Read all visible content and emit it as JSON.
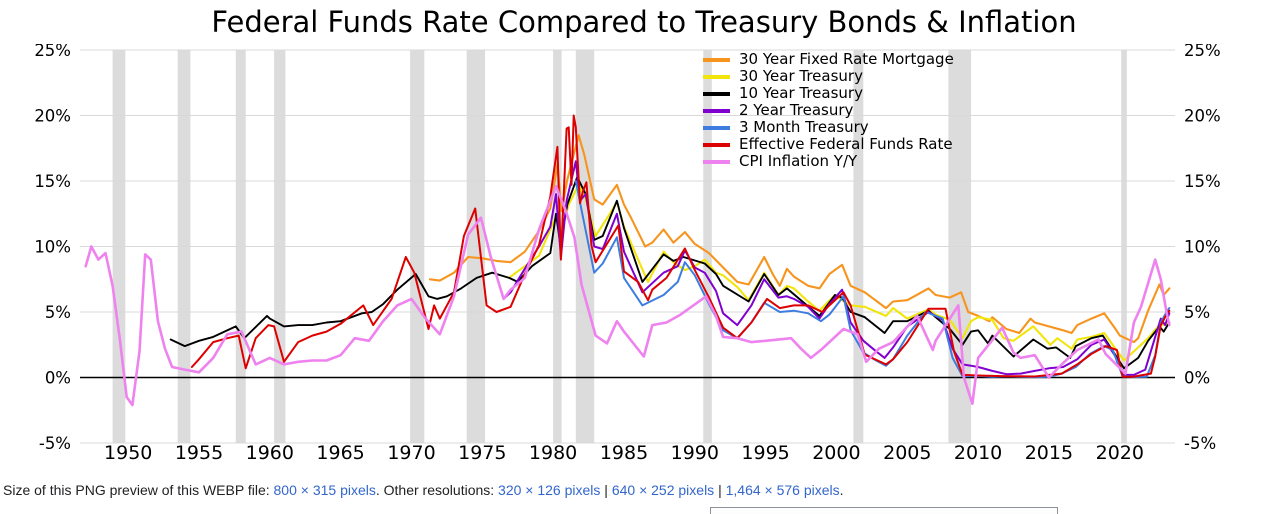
{
  "chart_data": {
    "type": "line",
    "title": "Federal Funds Rate Compared to Treasury Bonds & Inflation",
    "xlabel": "",
    "ylabel": "",
    "xlim": [
      1946.6,
      2023.9
    ],
    "ylim": [
      -5,
      25
    ],
    "y_ticks": [
      25,
      20,
      15,
      10,
      5,
      0,
      -5
    ],
    "y_tick_suffix": "%",
    "x_ticks": [
      1950,
      1955,
      1960,
      1965,
      1970,
      1975,
      1980,
      1985,
      1990,
      1995,
      2000,
      2005,
      2010,
      2015,
      2020
    ],
    "grid": "horizontal",
    "legend_position": "top-right-inside",
    "colors": {
      "recession_band": "#dcdcdc",
      "gridline": "#d9d9d9",
      "zero_line": "#000000"
    },
    "recession_bands": [
      [
        1948.9,
        1949.8
      ],
      [
        1953.5,
        1954.4
      ],
      [
        1957.6,
        1958.3
      ],
      [
        1960.3,
        1961.1
      ],
      [
        1969.9,
        1970.9
      ],
      [
        1973.9,
        1975.2
      ],
      [
        1980.0,
        1980.6
      ],
      [
        1981.6,
        1982.9
      ],
      [
        1990.6,
        1991.2
      ],
      [
        2001.2,
        2001.9
      ],
      [
        2007.9,
        2009.5
      ],
      [
        2020.1,
        2020.5
      ]
    ],
    "series": [
      {
        "id": "mortgage-30y",
        "name": "30 Year Fixed Rate Mortgage",
        "color": "#f7941d",
        "width": 2.1,
        "x": [
          1971.3,
          1972,
          1973,
          1974,
          1975,
          1976,
          1977,
          1978,
          1979,
          1979.8,
          1980.3,
          1980.6,
          1981,
          1981.8,
          1982.2,
          1982.9,
          1983.5,
          1984.5,
          1985,
          1985.5,
          1986.5,
          1987,
          1987.8,
          1988.5,
          1989.3,
          1990,
          1991,
          1992,
          1993,
          1993.8,
          1994.9,
          1995.5,
          1996,
          1996.5,
          1997,
          1998,
          1998.8,
          1999.5,
          2000.4,
          2001,
          2002,
          2003.5,
          2004,
          2005,
          2006.5,
          2007,
          2008,
          2008.8,
          2009.3,
          2010,
          2010.8,
          2011,
          2012,
          2012.9,
          2013.7,
          2014,
          2015,
          2016,
          2016.6,
          2017,
          2018,
          2018.9,
          2019.7,
          2020,
          2021,
          2021.3,
          2022,
          2022.8,
          2023.1,
          2023.5
        ],
        "values": [
          7.5,
          7.4,
          8.0,
          9.2,
          9.1,
          8.9,
          8.8,
          9.6,
          11.2,
          12.9,
          16.3,
          12.7,
          15.1,
          18.5,
          17.0,
          13.6,
          13.2,
          14.7,
          13.2,
          12.2,
          10.0,
          10.3,
          11.3,
          10.3,
          11.1,
          10.2,
          9.5,
          8.4,
          7.3,
          7.1,
          9.2,
          7.9,
          7.0,
          8.3,
          7.7,
          7.0,
          6.8,
          7.9,
          8.6,
          7.0,
          6.5,
          5.3,
          5.8,
          5.9,
          6.8,
          6.3,
          6.1,
          6.5,
          5.0,
          4.7,
          4.3,
          4.6,
          3.7,
          3.4,
          4.5,
          4.2,
          3.9,
          3.6,
          3.4,
          4.0,
          4.5,
          4.9,
          3.7,
          3.2,
          2.7,
          3.0,
          5.1,
          7.1,
          6.3,
          6.8
        ]
      },
      {
        "id": "treasury-30y",
        "name": "30 Year Treasury",
        "color": "#f2e50b",
        "width": 2.1,
        "x": [
          1977,
          1978,
          1979,
          1980.2,
          1980.6,
          1981.1,
          1981.8,
          1982.3,
          1983,
          1984,
          1984.5,
          1985,
          1986,
          1986.7,
          1987.8,
          1988.5,
          1989.3,
          1990,
          1990.7,
          1991.5,
          1992,
          1993,
          1993.8,
          1994.9,
          1995.9,
          1996.5,
          1997,
          1998,
          1998.8,
          1999.9,
          2000.4,
          2001,
          2002,
          2003.5,
          2004,
          2005,
          2006.5,
          2007,
          2008,
          2008.9,
          2009.5,
          2010,
          2011,
          2011.8,
          2012.5,
          2013.9,
          2015.1,
          2015.6,
          2016.6,
          2017,
          2018,
          2018.9,
          2019.7,
          2020.3,
          2021.3,
          2022,
          2022.8,
          2023.5
        ],
        "values": [
          7.7,
          8.5,
          9.3,
          12.3,
          11.2,
          13.2,
          14.7,
          13.6,
          10.8,
          12.5,
          13.4,
          11.5,
          9.0,
          7.3,
          9.6,
          8.8,
          8.2,
          8.5,
          9.0,
          8.0,
          7.8,
          6.9,
          5.9,
          8.0,
          6.3,
          7.0,
          6.8,
          5.8,
          5.1,
          6.3,
          5.9,
          5.5,
          5.4,
          4.7,
          5.3,
          4.5,
          5.2,
          4.8,
          4.4,
          3.0,
          4.3,
          4.6,
          4.4,
          3.0,
          2.8,
          3.9,
          2.5,
          3.0,
          2.2,
          2.9,
          3.1,
          3.4,
          2.2,
          1.3,
          2.3,
          3.0,
          4.0,
          4.1
        ]
      },
      {
        "id": "treasury-10y",
        "name": "10 Year Treasury",
        "color": "#000000",
        "width": 1.9,
        "x": [
          1953,
          1954,
          1955,
          1956,
          1957.6,
          1958.2,
          1959.8,
          1960,
          1961,
          1962,
          1963,
          1964,
          1965,
          1966.5,
          1967.2,
          1968,
          1969,
          1970.3,
          1971.2,
          1971.8,
          1972.5,
          1973.5,
          1974.6,
          1975.7,
          1976.9,
          1977.5,
          1978.5,
          1979.8,
          1980.2,
          1980.5,
          1981,
          1981.7,
          1982.3,
          1982.9,
          1983.5,
          1984.5,
          1985,
          1986.3,
          1987.8,
          1988.5,
          1989.2,
          1990.7,
          1991.5,
          1992,
          1993.8,
          1994.9,
          1995.9,
          1996.5,
          1998.8,
          1999.9,
          2000.4,
          2001,
          2002,
          2003.4,
          2004,
          2005,
          2006.5,
          2007,
          2008,
          2008.9,
          2009.5,
          2010,
          2010.7,
          2011,
          2012.5,
          2013.9,
          2014.9,
          2015.5,
          2016.5,
          2016.9,
          2018,
          2018.8,
          2019.7,
          2020.3,
          2021.3,
          2022,
          2022.8,
          2023.1,
          2023.5
        ],
        "values": [
          2.9,
          2.4,
          2.8,
          3.1,
          3.9,
          3.0,
          4.7,
          4.5,
          3.9,
          4.0,
          4.0,
          4.2,
          4.3,
          4.9,
          5.0,
          5.6,
          6.7,
          7.9,
          6.2,
          6.0,
          6.2,
          6.8,
          7.6,
          8.0,
          7.6,
          7.3,
          8.5,
          9.5,
          12.5,
          10.2,
          13.2,
          15.3,
          14.0,
          10.5,
          10.8,
          13.5,
          11.4,
          7.3,
          9.4,
          8.9,
          9.2,
          8.7,
          7.9,
          7.0,
          5.8,
          7.9,
          6.3,
          6.8,
          4.7,
          6.3,
          6.1,
          5.0,
          4.6,
          3.4,
          4.3,
          4.3,
          5.1,
          4.6,
          3.7,
          2.5,
          3.5,
          3.6,
          2.6,
          3.2,
          1.6,
          2.9,
          2.2,
          2.3,
          1.5,
          2.4,
          3.0,
          3.2,
          1.7,
          0.7,
          1.5,
          2.8,
          3.9,
          3.5,
          4.2
        ]
      },
      {
        "id": "treasury-2y",
        "name": "2 Year Treasury",
        "color": "#8000cf",
        "width": 2.0,
        "x": [
          1976.5,
          1977,
          1978,
          1979,
          1979.8,
          1980.2,
          1980.55,
          1980.95,
          1981.6,
          1981.9,
          1982.3,
          1982.9,
          1983.5,
          1984.5,
          1985,
          1986.3,
          1987.8,
          1988.8,
          1989.3,
          1990,
          1990.7,
          1991.5,
          1992,
          1993,
          1994,
          1994.9,
          1995.9,
          1996.5,
          1997,
          1998,
          1998.8,
          1999.5,
          2000.4,
          2001,
          2001.9,
          2002.8,
          2003.4,
          2004,
          2005,
          2006.5,
          2007.5,
          2008.2,
          2008.9,
          2009.5,
          2010,
          2011,
          2012,
          2013,
          2014,
          2015,
          2016,
          2017,
          2018,
          2018.9,
          2019.7,
          2020.2,
          2021,
          2021.8,
          2022.5,
          2022.9,
          2023.2,
          2023.5
        ],
        "values": [
          6.0,
          6.5,
          8.3,
          10.0,
          11.5,
          14.0,
          9.2,
          13.5,
          16.5,
          13.5,
          14.0,
          10.0,
          9.8,
          12.5,
          9.6,
          6.5,
          8.0,
          8.5,
          9.7,
          8.4,
          8.0,
          6.6,
          4.9,
          4.0,
          5.5,
          7.5,
          6.1,
          6.2,
          6.0,
          5.4,
          4.5,
          5.6,
          6.7,
          4.2,
          2.8,
          2.0,
          1.5,
          2.3,
          3.9,
          5.0,
          4.4,
          2.2,
          1.0,
          0.9,
          0.8,
          0.5,
          0.25,
          0.3,
          0.5,
          0.7,
          0.8,
          1.4,
          2.5,
          2.9,
          1.6,
          0.2,
          0.2,
          0.6,
          3.1,
          4.5,
          4.0,
          4.9
        ]
      },
      {
        "id": "treasury-3m",
        "name": "3 Month Treasury",
        "color": "#3d7de0",
        "width": 2.0,
        "x": [
          1981.6,
          1982,
          1982.9,
          1983.5,
          1984.5,
          1985,
          1986.3,
          1987.8,
          1988.8,
          1989.3,
          1990,
          1991,
          1992,
          1993,
          1994,
          1994.9,
          1996,
          1997,
          1998,
          1998.9,
          1999.5,
          2000.5,
          2001,
          2001.9,
          2002.8,
          2003.5,
          2004,
          2005,
          2006.3,
          2007.5,
          2008.2,
          2008.9,
          2010,
          2011,
          2012,
          2013,
          2014,
          2015,
          2015.9,
          2016.9,
          2017.9,
          2018.9,
          2019.5,
          2020.2,
          2021,
          2021.9,
          2022.5,
          2022.9,
          2023.3,
          2023.5
        ],
        "values": [
          15.0,
          12.8,
          8.0,
          8.7,
          10.7,
          7.6,
          5.5,
          6.3,
          7.3,
          8.8,
          7.8,
          5.6,
          3.6,
          3.0,
          4.2,
          5.7,
          5.0,
          5.1,
          4.9,
          4.3,
          4.8,
          6.2,
          3.6,
          1.9,
          1.3,
          0.9,
          1.4,
          3.2,
          5.0,
          4.5,
          1.5,
          0.1,
          0.14,
          0.06,
          0.09,
          0.05,
          0.03,
          0.05,
          0.3,
          0.8,
          1.8,
          2.4,
          2.1,
          0.1,
          0.04,
          0.06,
          1.7,
          4.2,
          5.0,
          5.3
        ]
      },
      {
        "id": "fed-funds",
        "name": "Effective Federal Funds Rate",
        "color": "#dd0000",
        "width": 2.0,
        "x": [
          1954.5,
          1955,
          1956,
          1957,
          1957.8,
          1958.3,
          1959,
          1959.9,
          1960.3,
          1961,
          1962,
          1963,
          1964,
          1965,
          1966.6,
          1967.3,
          1968.6,
          1969.6,
          1970.2,
          1970.9,
          1971.2,
          1971.6,
          1972,
          1973,
          1973.7,
          1974.5,
          1975.3,
          1976,
          1977,
          1978,
          1979,
          1979.8,
          1980.3,
          1980.55,
          1980.95,
          1981.1,
          1981.3,
          1981.45,
          1981.6,
          1981.9,
          1982.1,
          1982.35,
          1982.7,
          1983,
          1984.6,
          1985,
          1986,
          1986.7,
          1987,
          1988,
          1989.3,
          1990,
          1991,
          1992,
          1993,
          1994,
          1995.1,
          1996,
          1997,
          1998,
          1999,
          2000.5,
          2001,
          2002,
          2003.5,
          2004,
          2005,
          2006.5,
          2007.7,
          2008.3,
          2008.9,
          2010,
          2012,
          2014,
          2015.9,
          2017,
          2018,
          2019,
          2019.8,
          2020.2,
          2021,
          2022.2,
          2022.5,
          2022.9,
          2023.3,
          2023.5
        ],
        "values": [
          0.8,
          1.4,
          2.7,
          3.0,
          3.2,
          0.7,
          3.0,
          4.0,
          3.9,
          1.2,
          2.7,
          3.2,
          3.5,
          4.1,
          5.5,
          4.0,
          6.0,
          9.2,
          8.0,
          5.0,
          3.7,
          5.5,
          4.5,
          6.5,
          10.8,
          12.9,
          5.5,
          5.0,
          5.4,
          7.9,
          10.1,
          13.8,
          17.6,
          9.0,
          19.0,
          19.1,
          14.7,
          20.0,
          19.1,
          13.3,
          14.2,
          14.9,
          10.1,
          8.8,
          11.6,
          8.1,
          7.3,
          5.9,
          6.7,
          7.6,
          9.85,
          8.2,
          6.1,
          3.8,
          3.0,
          4.2,
          6.0,
          5.3,
          5.5,
          5.5,
          5.0,
          6.5,
          5.5,
          1.75,
          1.0,
          1.4,
          2.7,
          5.25,
          5.25,
          2.0,
          0.2,
          0.15,
          0.1,
          0.08,
          0.3,
          1.0,
          1.8,
          2.4,
          2.1,
          0.06,
          0.07,
          0.3,
          1.6,
          4.0,
          4.8,
          5.1
        ]
      },
      {
        "id": "cpi-inflation",
        "name": "CPI Inflation Y/Y",
        "color": "#ee82ee",
        "width": 2.6,
        "x": [
          1947,
          1947.4,
          1947.9,
          1948.4,
          1948.9,
          1949.4,
          1949.9,
          1950.3,
          1950.8,
          1951.2,
          1951.6,
          1952.1,
          1952.6,
          1953.1,
          1954,
          1955,
          1956,
          1957,
          1958,
          1959,
          1960,
          1961,
          1962,
          1963,
          1964,
          1965,
          1966,
          1967,
          1968,
          1969,
          1970,
          1971,
          1972,
          1973,
          1974,
          1974.9,
          1975.6,
          1976.5,
          1977,
          1978,
          1979,
          1980.2,
          1980.9,
          1981.5,
          1982,
          1983,
          1983.8,
          1984.5,
          1985,
          1986.4,
          1987,
          1988,
          1989,
          1990.8,
          1991.5,
          1992,
          1993,
          1994,
          1995,
          1996.8,
          1997.5,
          1998.2,
          1999,
          2000.5,
          2001.5,
          2002.1,
          2003,
          2004,
          2005.7,
          2006.8,
          2007,
          2008.6,
          2009,
          2009.6,
          2010,
          2011.7,
          2012.5,
          2013,
          2014,
          2015,
          2016,
          2017,
          2018.5,
          2019,
          2020.4,
          2021,
          2021.5,
          2022.5,
          2022.9,
          2023.3,
          2023.5
        ],
        "values": [
          8.5,
          10.0,
          9.0,
          9.5,
          7.0,
          3.0,
          -1.5,
          -2.1,
          2.0,
          9.4,
          9.0,
          4.3,
          2.2,
          0.8,
          0.6,
          0.4,
          1.5,
          3.3,
          3.5,
          1.0,
          1.5,
          1.0,
          1.2,
          1.3,
          1.3,
          1.7,
          3.0,
          2.8,
          4.3,
          5.5,
          6.0,
          4.5,
          3.3,
          6.2,
          10.9,
          12.2,
          9.2,
          6.0,
          6.7,
          7.6,
          11.3,
          14.6,
          12.7,
          10.7,
          7.1,
          3.2,
          2.6,
          4.3,
          3.5,
          1.6,
          4.0,
          4.2,
          4.8,
          6.2,
          4.7,
          3.1,
          3.0,
          2.7,
          2.8,
          3.0,
          2.2,
          1.5,
          2.2,
          3.7,
          3.3,
          1.2,
          2.2,
          2.7,
          4.7,
          2.1,
          2.8,
          5.5,
          0.0,
          -2.0,
          1.5,
          3.8,
          1.9,
          1.5,
          1.7,
          0.0,
          1.1,
          2.1,
          2.9,
          1.8,
          0.3,
          4.2,
          5.4,
          9.0,
          7.5,
          5.0,
          4.0
        ]
      }
    ]
  },
  "footer": {
    "segments": [
      {
        "text": "Size of this PNG preview of this WEBP file: ",
        "link": false
      },
      {
        "text": "800 × 315 pixels",
        "link": true
      },
      {
        "text": ". Other resolutions: ",
        "link": false
      },
      {
        "text": "320 × 126 pixels",
        "link": true
      },
      {
        "text": " | ",
        "link": false
      },
      {
        "text": "640 × 252 pixels",
        "link": true
      },
      {
        "text": " | ",
        "link": false
      },
      {
        "text": "1,464 × 576 pixels",
        "link": true
      },
      {
        "text": ".",
        "link": false
      }
    ]
  }
}
